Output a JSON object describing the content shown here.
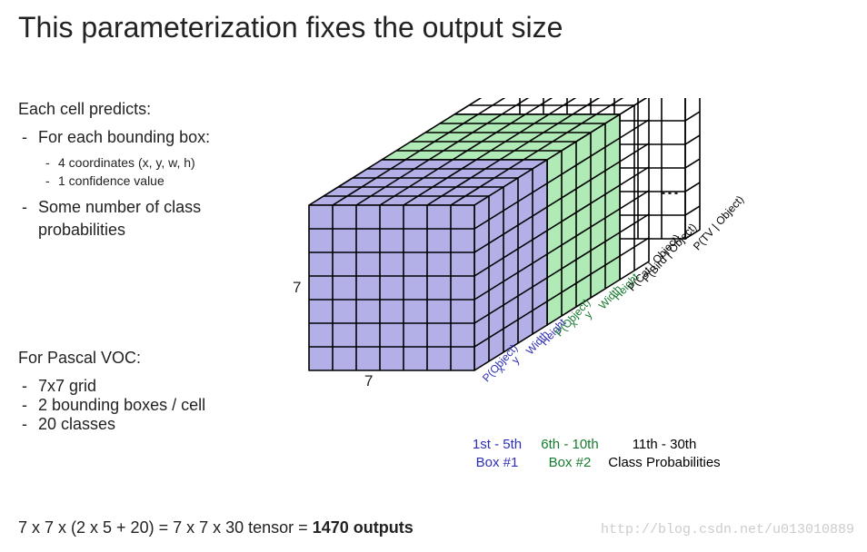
{
  "title": "This parameterization fixes the output size",
  "left": {
    "heading": "Each cell predicts:",
    "bbox_item": "For each bounding box:",
    "bbox_sub1": "4 coordinates (x, y, w, h)",
    "bbox_sub2": "1 confidence value",
    "class_item": "Some number of class probabilities"
  },
  "voc": {
    "heading": "For Pascal VOC:",
    "item1": "7x7 grid",
    "item2": "2 bounding boxes / cell",
    "item3": "20 classes"
  },
  "formula": {
    "text": "7 x 7 x (2 x 5 + 20) = 7 x 7 x 30 tensor = ",
    "bold": "1470 outputs"
  },
  "watermark": "http://blog.csdn.net/u013010889",
  "diagram": {
    "grid_rows": 7,
    "grid_cols": 7,
    "cell": 26,
    "depth_step_x": 16,
    "depth_step_y": 10,
    "stroke": "#000000",
    "stroke_width": 1.6,
    "segments": [
      {
        "slabs": 5,
        "fill": "#b2b0e6",
        "labels": [
          "P(Object)",
          "x",
          "y",
          "Width",
          "Height"
        ],
        "label_color": "#2e2fb7",
        "box_label_l1": "1st - 5th",
        "box_label_l2": "Box #1"
      },
      {
        "slabs": 5,
        "fill": "#b0eab6",
        "labels": [
          "P(Object)",
          "x",
          "y",
          "Width",
          "Height"
        ],
        "label_color": "#167a2e",
        "box_label_l1": "6th - 10th",
        "box_label_l2": "Box #2"
      }
    ],
    "wire_labels": [
      "P(Cat | Object)",
      "P(Bird | Object)"
    ],
    "wire_last_label": "P(TV | Object)",
    "class_box_l1": "11th - 30th",
    "class_box_l2": "Class Probabilities",
    "axis_label": "7",
    "ellipsis": "…",
    "wire_slabs_front": 2,
    "wire_slabs_back": 1,
    "gap_after_front_wire": 40
  }
}
